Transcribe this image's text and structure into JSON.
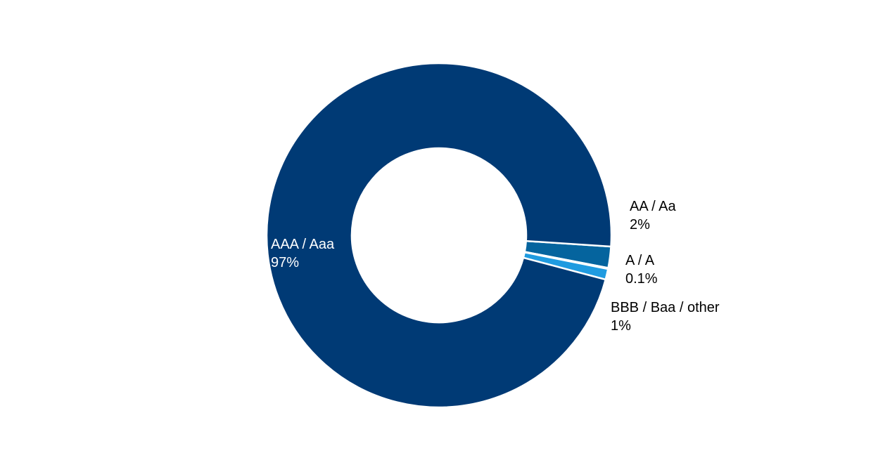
{
  "chart_data": {
    "type": "pie",
    "variant": "donut",
    "title": "",
    "slices": [
      {
        "label": "AA / Aa",
        "value": 2,
        "value_label": "2%",
        "color": "#05649e"
      },
      {
        "label": "A / A",
        "value": 0.1,
        "value_label": "0.1%",
        "color": "#1783c4"
      },
      {
        "label": "BBB / Baa / other",
        "value": 1,
        "value_label": "1%",
        "color": "#1f9be0"
      },
      {
        "label": "AAA / Aaa",
        "value": 97,
        "value_label": "97%",
        "color": "#003a75"
      }
    ],
    "legend": "none",
    "data_labels": true
  }
}
